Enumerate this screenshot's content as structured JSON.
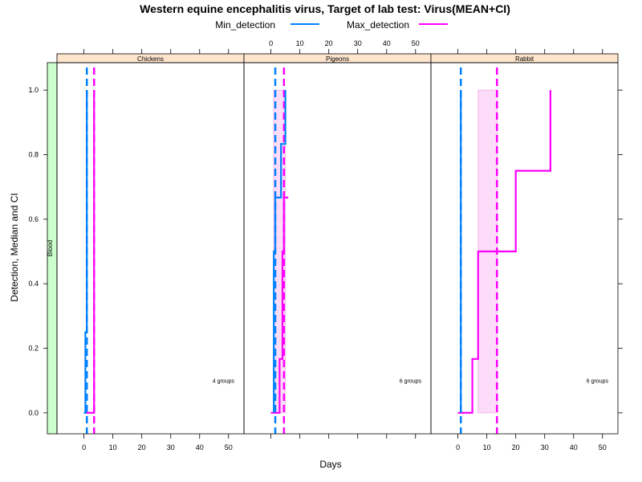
{
  "chart_data": {
    "type": "line",
    "title": "Western equine encephalitis virus, Target of lab test: Virus(MEAN+CI)",
    "xlabel": "Days",
    "ylabel": "Detection, Median and CI",
    "xlim": [
      -6,
      52
    ],
    "ylim": [
      -0.065,
      1.085
    ],
    "x_ticks": [
      0,
      10,
      20,
      30,
      40,
      50
    ],
    "y_ticks": [
      0.0,
      0.2,
      0.4,
      0.6,
      0.8,
      1.0
    ],
    "y_tick_labels": [
      "0.0",
      "0.2",
      "0.4",
      "0.6",
      "0.8",
      "1.0"
    ],
    "strip_label": "Blood",
    "legend_placement": "top",
    "legend": [
      {
        "name": "Min_detection",
        "color": "#0080ff"
      },
      {
        "name": "Max_detection",
        "color": "#ff00ff"
      }
    ],
    "panels": [
      {
        "name": "Chickens",
        "groups_label": "4 groups",
        "min_steps": [
          [
            0,
            0
          ],
          [
            0.5,
            0
          ],
          [
            0.5,
            0.25
          ],
          [
            1,
            0.25
          ],
          [
            1,
            0.5
          ],
          [
            1,
            1.0
          ]
        ],
        "max_steps": [
          [
            0,
            0
          ],
          [
            3.5,
            0
          ],
          [
            3.5,
            1.0
          ]
        ],
        "min_vline": 1,
        "max_vline": 3.5,
        "ci_band": null
      },
      {
        "name": "Pigeons",
        "groups_label": "6 groups",
        "min_steps": [
          [
            1,
            0
          ],
          [
            1,
            0.5
          ],
          [
            1.5,
            0.5
          ],
          [
            1.5,
            0.667
          ],
          [
            3.5,
            0.667
          ],
          [
            3.5,
            0.833
          ],
          [
            5,
            0.833
          ],
          [
            5,
            1.0
          ]
        ],
        "max_steps": [
          [
            0,
            0
          ],
          [
            3,
            0
          ],
          [
            3,
            0.167
          ],
          [
            4,
            0.167
          ],
          [
            4,
            0.5
          ],
          [
            4.5,
            0.5
          ],
          [
            4.5,
            0.667
          ],
          [
            6,
            0.667
          ]
        ],
        "min_vline": 1.5,
        "max_vline": 4.5,
        "ci_band": {
          "x": [
            1,
            5
          ],
          "y": [
            0,
            1.0
          ]
        }
      },
      {
        "name": "Rabbit",
        "groups_label": "6 groups",
        "min_steps": [
          [
            1,
            0
          ],
          [
            1,
            1.0
          ]
        ],
        "max_steps": [
          [
            0,
            0
          ],
          [
            5,
            0
          ],
          [
            5,
            0.167
          ],
          [
            7,
            0.167
          ],
          [
            7,
            0.5
          ],
          [
            20,
            0.5
          ],
          [
            20,
            0.75
          ],
          [
            32,
            0.75
          ],
          [
            32,
            1.0
          ]
        ],
        "min_vline": 1,
        "max_vline": 13.5,
        "ci_band": {
          "x": [
            7,
            13.5
          ],
          "y": [
            0,
            1.0
          ]
        }
      }
    ]
  }
}
